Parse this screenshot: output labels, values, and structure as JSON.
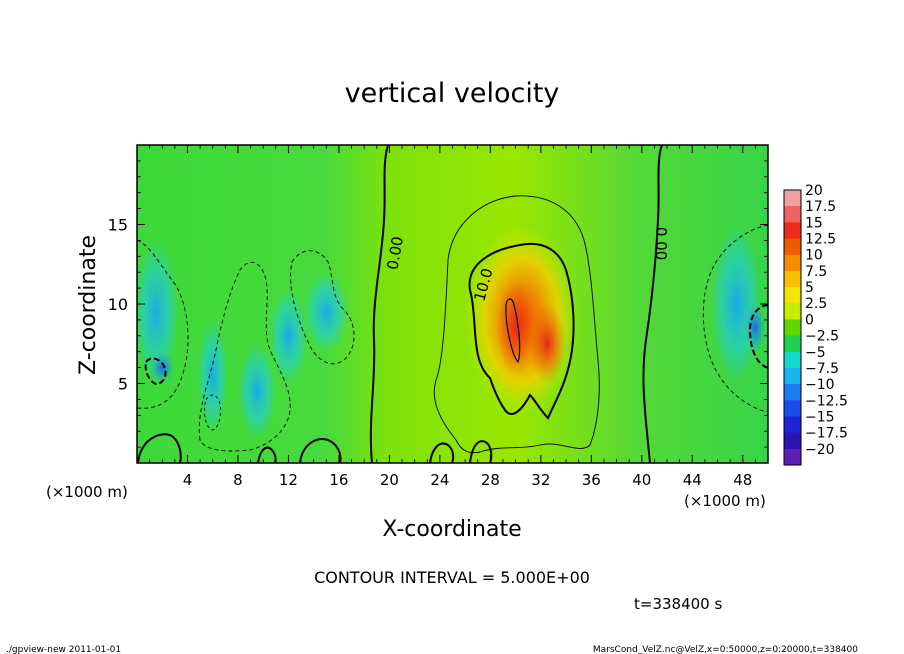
{
  "chart_data": {
    "type": "heatmap",
    "title": "vertical velocity",
    "xlabel": "X-coordinate",
    "ylabel": "Z-coordinate",
    "x_unit_left": "(×1000 m)",
    "x_unit_right": "(×1000 m)",
    "xlim": [
      0,
      50
    ],
    "ylim": [
      0,
      20
    ],
    "x_ticks": [
      4,
      8,
      12,
      16,
      20,
      24,
      28,
      32,
      36,
      40,
      44,
      48
    ],
    "y_ticks": [
      5,
      10,
      15
    ],
    "contour_interval_text": "CONTOUR INTERVAL = 5.000E+00",
    "time_text": "t=338400 s",
    "contour_labels": [
      {
        "text": "0.00",
        "x": 20.5,
        "z": 13.2,
        "rotate": -80
      },
      {
        "text": "10.0",
        "x": 27.5,
        "z": 11.2,
        "rotate": -75
      },
      {
        "text": "0.00",
        "x": 41.5,
        "z": 13.8,
        "rotate": 90
      }
    ],
    "colorbar": {
      "labels": [
        "20",
        "17.5",
        "15",
        "12.5",
        "10",
        "7.5",
        "5",
        "2.5",
        "0",
        "−2.5",
        "−5",
        "−7.5",
        "−10",
        "−12.5",
        "−15",
        "−17.5",
        "−20"
      ],
      "colors": [
        "#f0a0a0",
        "#f06262",
        "#ee2a18",
        "#f05a00",
        "#f88c00",
        "#f8c000",
        "#f0e400",
        "#c8ec00",
        "#5ed800",
        "#1ed050",
        "#16d8c8",
        "#18b4f0",
        "#1c7cf0",
        "#1c4cf0",
        "#1e22d8",
        "#2a14b4",
        "#5e1eb4"
      ]
    },
    "fields": [
      {
        "sign": "neg",
        "x": 1.5,
        "z": 9.5,
        "a": 1.8,
        "b": 4.5,
        "peak": -7
      },
      {
        "sign": "neg",
        "x": 2.0,
        "z": 6.0,
        "a": 1.0,
        "b": 1.0,
        "peak": -10
      },
      {
        "sign": "neg",
        "x": 6.0,
        "z": 5.5,
        "a": 1.2,
        "b": 3.5,
        "peak": -5
      },
      {
        "sign": "neg",
        "x": 9.5,
        "z": 4.5,
        "a": 1.5,
        "b": 3.0,
        "peak": -5
      },
      {
        "sign": "neg",
        "x": 12.0,
        "z": 8.0,
        "a": 1.5,
        "b": 3.0,
        "peak": -4
      },
      {
        "sign": "neg",
        "x": 15.0,
        "z": 9.5,
        "a": 1.8,
        "b": 2.5,
        "peak": -4
      },
      {
        "sign": "neg",
        "x": 47.5,
        "z": 10.0,
        "a": 2.0,
        "b": 5.0,
        "peak": -8
      },
      {
        "sign": "neg",
        "x": 49.0,
        "z": 8.5,
        "a": 0.8,
        "b": 1.6,
        "peak": -11
      },
      {
        "sign": "pos",
        "x": 30.5,
        "z": 9.0,
        "a": 4.5,
        "b": 6.0,
        "peak": 12
      },
      {
        "sign": "pos",
        "x": 30.0,
        "z": 8.5,
        "a": 1.5,
        "b": 3.0,
        "peak": 16
      },
      {
        "sign": "pos",
        "x": 32.5,
        "z": 7.5,
        "a": 1.5,
        "b": 2.5,
        "peak": 14
      }
    ]
  },
  "footer": {
    "left": "./gpview-new  2011-01-01",
    "right": "MarsCond_VelZ.nc@VelZ,x=0:50000,z=0:20000,t=338400"
  }
}
